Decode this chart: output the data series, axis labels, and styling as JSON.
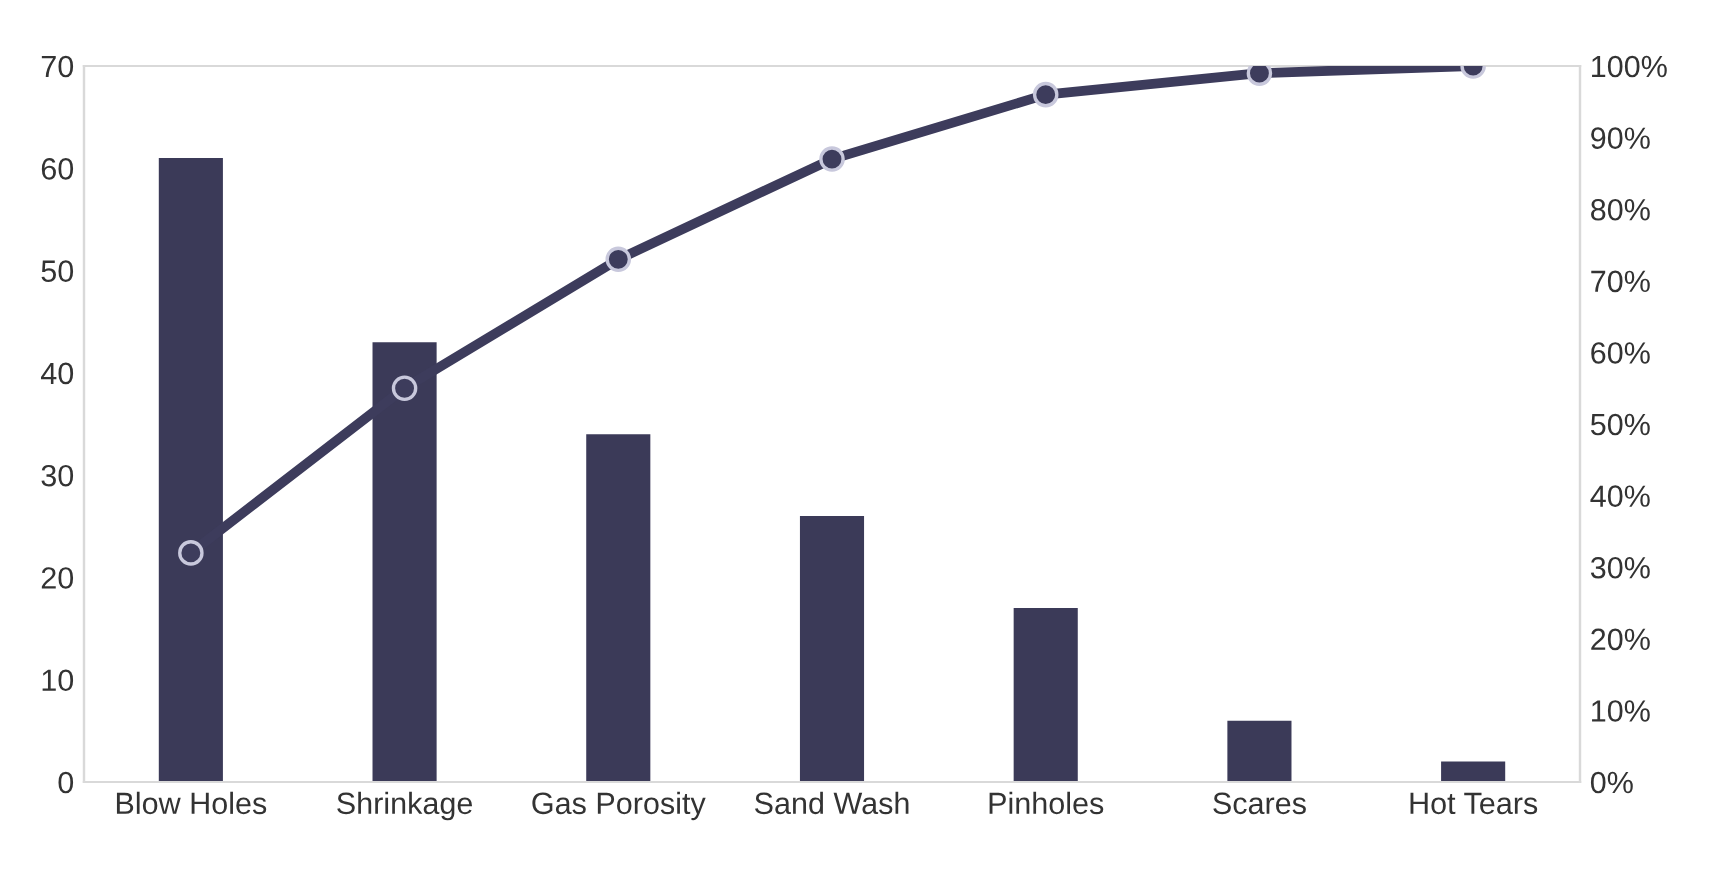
{
  "chart_data": {
    "type": "bar",
    "categories": [
      "Blow Holes",
      "Shrinkage",
      "Gas Porosity",
      "Sand Wash",
      "Pinholes",
      "Scares",
      "Hot Tears"
    ],
    "series": [
      {
        "color": "#3b3a58",
        "values": [
          61,
          43,
          34,
          26,
          17,
          6,
          2
        ]
      },
      {
        "type": "line",
        "axis": "y2",
        "color": "#3d3c5c",
        "marker": "circle",
        "values": [
          32,
          55,
          73,
          87,
          96,
          99,
          100
        ]
      }
    ],
    "ylim": [
      0,
      70
    ],
    "yticks": [
      0,
      10,
      20,
      30,
      40,
      50,
      60,
      70
    ],
    "y2lim": [
      0,
      100
    ],
    "y2ticks": [
      {
        "value": 0,
        "label": "0%"
      },
      {
        "value": 10,
        "label": "10%"
      },
      {
        "value": 20,
        "label": "20%"
      },
      {
        "value": 30,
        "label": "30%"
      },
      {
        "value": 40,
        "label": "40%"
      },
      {
        "value": 50,
        "label": "50%"
      },
      {
        "value": 60,
        "label": "60%"
      },
      {
        "value": 70,
        "label": "70%"
      },
      {
        "value": 80,
        "label": "80%"
      },
      {
        "value": 90,
        "label": "90%"
      },
      {
        "value": 100,
        "label": "100%"
      }
    ],
    "grid": false,
    "legend": false
  }
}
